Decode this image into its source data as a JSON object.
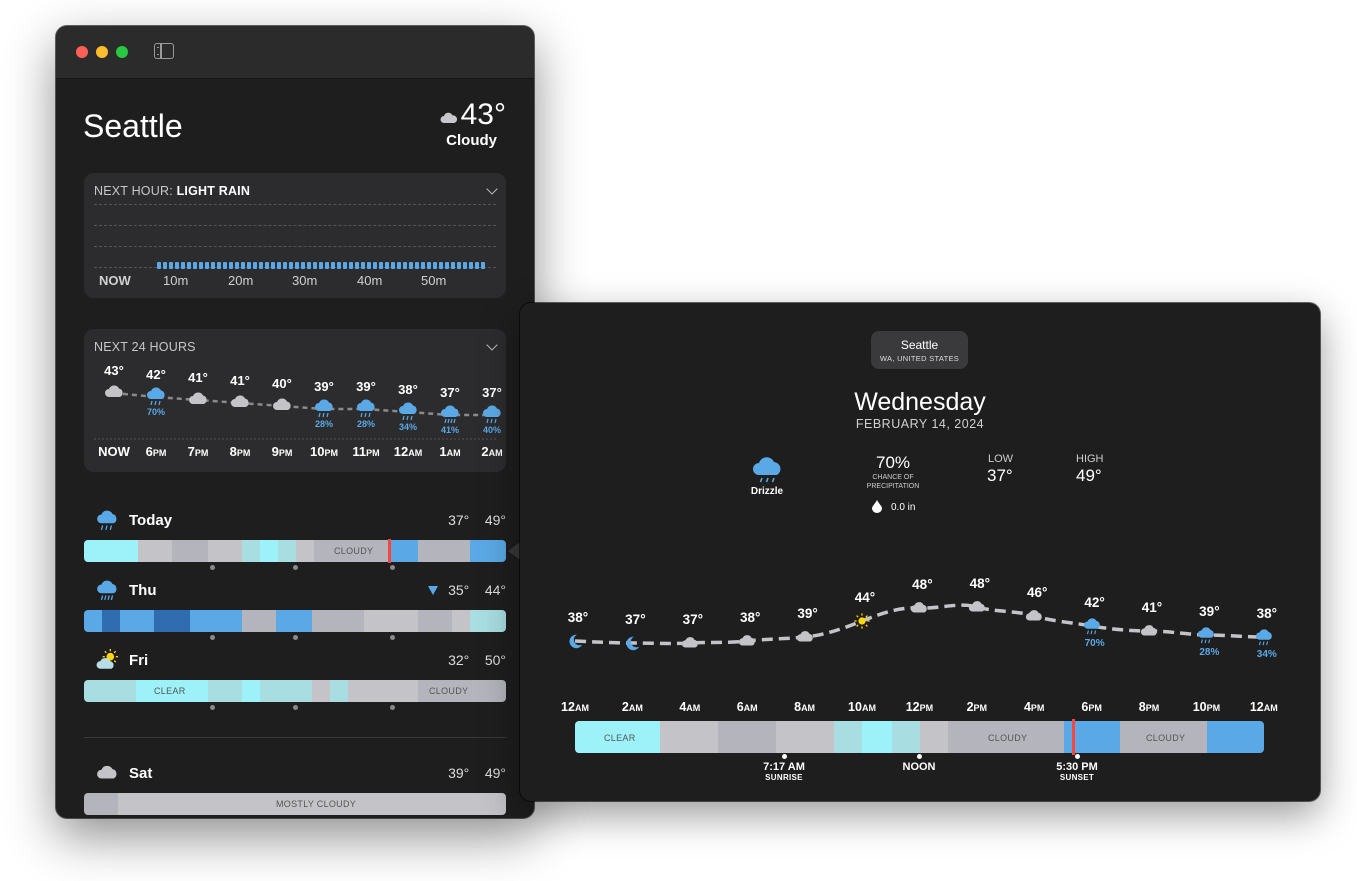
{
  "window": {
    "city": "Seattle",
    "current_temp": "43°",
    "current_condition": "Cloudy",
    "next_hour": {
      "title_prefix": "NEXT HOUR:",
      "title_value": "LIGHT RAIN",
      "axis": [
        "NOW",
        "10m",
        "20m",
        "30m",
        "40m",
        "50m"
      ]
    },
    "next_24": {
      "title": "NEXT 24 HOURS",
      "hours": [
        {
          "temp": "43°",
          "time": "NOW",
          "ampm": "",
          "icon": "cloud-icon",
          "pct": ""
        },
        {
          "temp": "42°",
          "time": "6",
          "ampm": "PM",
          "icon": "rain-cloud-icon",
          "pct": "70%"
        },
        {
          "temp": "41°",
          "time": "7",
          "ampm": "PM",
          "icon": "cloud-icon",
          "pct": ""
        },
        {
          "temp": "41°",
          "time": "8",
          "ampm": "PM",
          "icon": "cloud-icon",
          "pct": ""
        },
        {
          "temp": "40°",
          "time": "9",
          "ampm": "PM",
          "icon": "cloud-icon",
          "pct": ""
        },
        {
          "temp": "39°",
          "time": "10",
          "ampm": "PM",
          "icon": "rain-cloud-icon",
          "pct": "28%"
        },
        {
          "temp": "39°",
          "time": "11",
          "ampm": "PM",
          "icon": "rain-cloud-icon",
          "pct": "28%"
        },
        {
          "temp": "38°",
          "time": "12",
          "ampm": "AM",
          "icon": "rain-cloud-icon",
          "pct": "34%"
        },
        {
          "temp": "37°",
          "time": "1",
          "ampm": "AM",
          "icon": "heavy-rain-cloud-icon",
          "pct": "41%"
        },
        {
          "temp": "37°",
          "time": "2",
          "ampm": "AM",
          "icon": "rain-cloud-icon",
          "pct": "40%"
        }
      ]
    },
    "days": [
      {
        "name": "Today",
        "icon": "rain-cloud-icon",
        "low": "37°",
        "high": "49°",
        "bar_labels": [
          "CLOUDY"
        ]
      },
      {
        "name": "Thu",
        "icon": "heavy-rain-cloud-icon",
        "low": "35°",
        "high": "44°",
        "bar_labels": []
      },
      {
        "name": "Fri",
        "icon": "partly-sunny-icon",
        "low": "32°",
        "high": "50°",
        "bar_labels": [
          "CLEAR",
          "CLOUDY"
        ]
      },
      {
        "name": "Sat",
        "icon": "cloud-icon",
        "low": "39°",
        "high": "49°",
        "bar_labels": [
          "MOSTLY CLOUDY"
        ]
      }
    ]
  },
  "popover": {
    "city": "Seattle",
    "region": "WA, UNITED STATES",
    "weekday": "Wednesday",
    "date": "FEBRUARY 14, 2024",
    "condition": "Drizzle",
    "precip_chance": "70%",
    "precip_chance_label_1": "CHANCE OF",
    "precip_chance_label_2": "PRECIPITATION",
    "precip_amount": "0.0 in",
    "low_label": "LOW",
    "low": "37°",
    "high_label": "HIGH",
    "high": "49°",
    "hourly": [
      {
        "temp": "38°",
        "icon": "moon-icon",
        "pct": ""
      },
      {
        "temp": "37°",
        "icon": "moon-icon",
        "pct": ""
      },
      {
        "temp": "37°",
        "icon": "cloud-icon",
        "pct": ""
      },
      {
        "temp": "38°",
        "icon": "cloud-icon",
        "pct": ""
      },
      {
        "temp": "39°",
        "icon": "cloud-icon",
        "pct": ""
      },
      {
        "temp": "44°",
        "icon": "sun-icon",
        "pct": ""
      },
      {
        "temp": "48°",
        "icon": "cloud-icon",
        "pct": ""
      },
      {
        "temp": "48°",
        "icon": "cloud-icon",
        "pct": ""
      },
      {
        "temp": "46°",
        "icon": "cloud-icon",
        "pct": ""
      },
      {
        "temp": "42°",
        "icon": "rain-cloud-icon",
        "pct": "70%"
      },
      {
        "temp": "41°",
        "icon": "cloud-icon",
        "pct": ""
      },
      {
        "temp": "39°",
        "icon": "rain-cloud-icon",
        "pct": "28%"
      },
      {
        "temp": "38°",
        "icon": "rain-cloud-icon",
        "pct": "34%"
      }
    ],
    "times": [
      {
        "h": "12",
        "ap": "AM"
      },
      {
        "h": "2",
        "ap": "AM"
      },
      {
        "h": "4",
        "ap": "AM"
      },
      {
        "h": "6",
        "ap": "AM"
      },
      {
        "h": "8",
        "ap": "AM"
      },
      {
        "h": "10",
        "ap": "AM"
      },
      {
        "h": "12",
        "ap": "PM"
      },
      {
        "h": "2",
        "ap": "PM"
      },
      {
        "h": "4",
        "ap": "PM"
      },
      {
        "h": "6",
        "ap": "PM"
      },
      {
        "h": "8",
        "ap": "PM"
      },
      {
        "h": "10",
        "ap": "PM"
      },
      {
        "h": "12",
        "ap": "AM"
      }
    ],
    "bar_labels": [
      "CLEAR",
      "CLOUDY",
      "CLOUDY"
    ],
    "sunrise_time": "7:17 AM",
    "sunrise_label": "SUNRISE",
    "noon_label": "NOON",
    "sunset_time": "5:30 PM",
    "sunset_label": "SUNSET"
  },
  "colors": {
    "rain_blue": "#5aa9e6",
    "clear_cyan": "#9df2fa",
    "cloud_grey": "#c4c4c8",
    "now_red": "#ff453a"
  }
}
